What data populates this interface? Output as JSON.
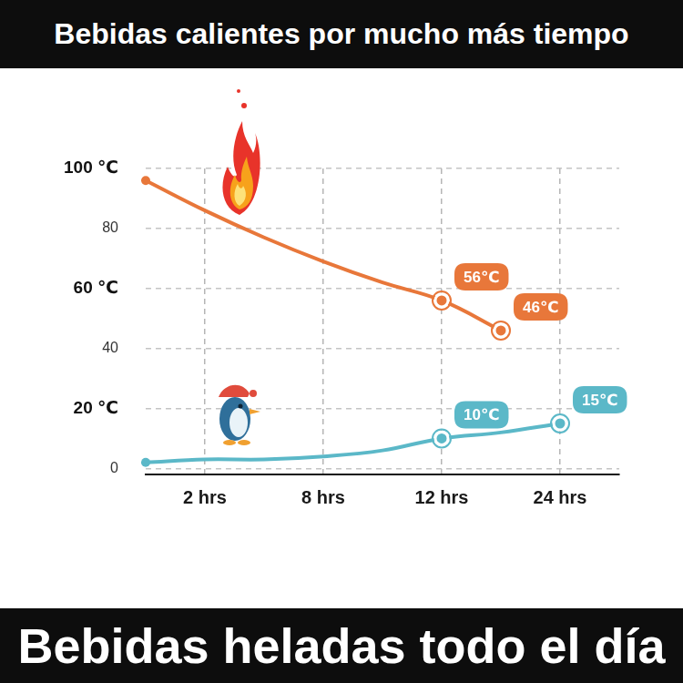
{
  "chart_data": {
    "type": "line",
    "title": "Bebidas calientes por mucho más tiempo",
    "subtitle": "Bebidas heladas todo el día",
    "categories": [
      null,
      "2 hrs",
      null,
      "8 hrs",
      null,
      "12 hrs",
      null,
      "24 hrs",
      null
    ],
    "series": [
      {
        "color": "#e8773a",
        "marker": "circle",
        "values": [
          96,
          86,
          77,
          69,
          62,
          56,
          46,
          null,
          null
        ],
        "value_labels": [
          null,
          null,
          null,
          null,
          null,
          "56℃",
          "46℃",
          null,
          null
        ]
      },
      {
        "color": "#5bb8c8",
        "marker": "circle",
        "values": [
          2,
          3,
          3,
          4,
          6,
          10,
          12,
          15,
          null
        ],
        "value_labels": [
          null,
          null,
          null,
          null,
          null,
          "10℃",
          null,
          "15℃",
          null
        ]
      }
    ],
    "ylim": [
      -2,
      100
    ],
    "yticks": [
      0,
      {
        "value": 20,
        "label": "20 ℃"
      },
      40,
      {
        "value": 60,
        "label": "60 ℃"
      },
      80,
      {
        "value": 100,
        "label": "100 ℃"
      }
    ],
    "grid": true,
    "data_labels": true
  }
}
